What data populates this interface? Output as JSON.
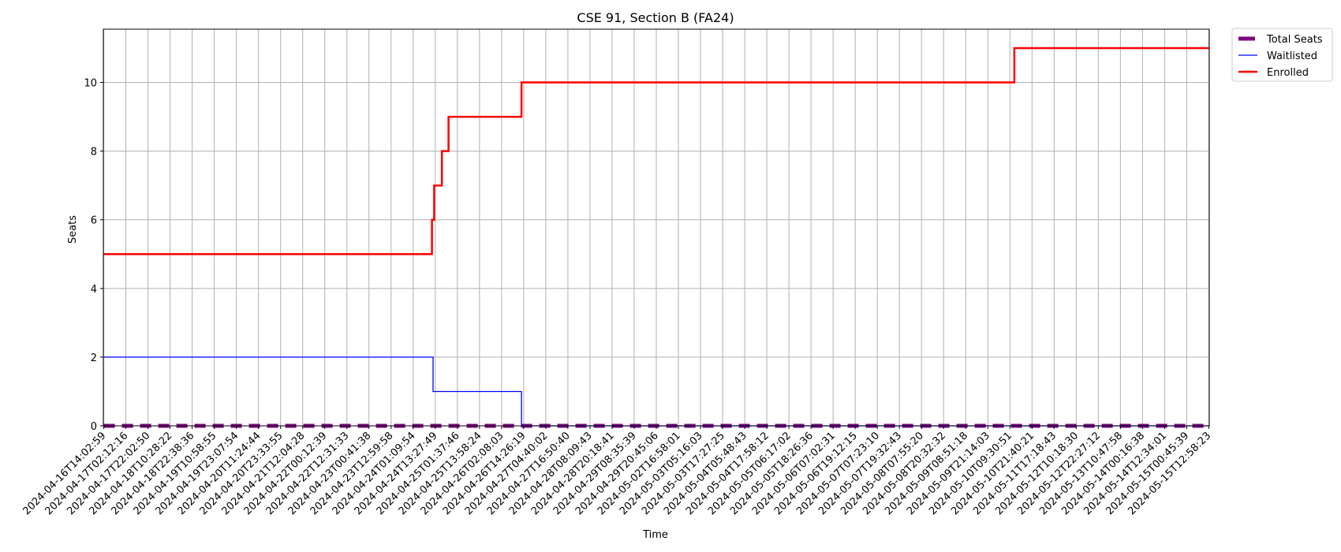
{
  "chart_data": {
    "type": "line",
    "title": "CSE 91, Section B (FA24)",
    "xlabel": "Time",
    "ylabel": "Seats",
    "ylim": [
      0,
      11.55
    ],
    "yticks": [
      0,
      2,
      4,
      6,
      8,
      10
    ],
    "grid": true,
    "legend_position": "outside-top-right",
    "x_ticks": [
      "2024-04-16T14:02:59",
      "2024-04-17T02:12:16",
      "2024-04-17T22:02:50",
      "2024-04-18T10:28:22",
      "2024-04-18T22:38:36",
      "2024-04-19T10:58:55",
      "2024-04-19T23:07:54",
      "2024-04-20T11:24:44",
      "2024-04-20T23:33:55",
      "2024-04-21T12:04:28",
      "2024-04-22T00:12:39",
      "2024-04-22T12:31:33",
      "2024-04-23T00:41:38",
      "2024-04-23T12:59:58",
      "2024-04-24T01:09:54",
      "2024-04-24T13:27:49",
      "2024-04-25T01:37:46",
      "2024-04-25T13:58:24",
      "2024-04-26T02:08:03",
      "2024-04-26T14:26:19",
      "2024-04-27T04:40:02",
      "2024-04-27T16:50:40",
      "2024-04-28T08:09:43",
      "2024-04-28T20:18:41",
      "2024-04-29T08:35:39",
      "2024-04-29T20:45:06",
      "2024-05-02T16:58:01",
      "2024-05-03T05:16:03",
      "2024-05-03T17:27:25",
      "2024-05-04T05:48:43",
      "2024-05-04T17:58:12",
      "2024-05-05T06:17:02",
      "2024-05-05T18:26:36",
      "2024-05-06T07:02:31",
      "2024-05-06T19:12:15",
      "2024-05-07T07:23:10",
      "2024-05-07T19:32:43",
      "2024-05-08T07:55:20",
      "2024-05-08T20:32:32",
      "2024-05-09T08:51:18",
      "2024-05-09T21:14:03",
      "2024-05-10T09:30:51",
      "2024-05-10T21:40:21",
      "2024-05-11T17:18:43",
      "2024-05-12T10:18:30",
      "2024-05-12T22:27:12",
      "2024-05-13T10:47:58",
      "2024-05-14T00:16:38",
      "2024-05-14T12:34:01",
      "2024-05-15T00:45:39",
      "2024-05-15T12:58:23"
    ],
    "series": [
      {
        "name": "Total Seats",
        "color": "#800080",
        "style": "dashed",
        "steps": [
          {
            "x": 0,
            "y": 0
          },
          {
            "x": 50,
            "y": 0
          }
        ]
      },
      {
        "name": "Waitlisted",
        "color": "#0000ff",
        "style": "solid",
        "steps": [
          {
            "x": 0,
            "y": 2
          },
          {
            "x": 14.9,
            "y": 2
          },
          {
            "x": 14.9,
            "y": 1
          },
          {
            "x": 18.9,
            "y": 1
          },
          {
            "x": 18.9,
            "y": 0
          },
          {
            "x": 50,
            "y": 0
          }
        ]
      },
      {
        "name": "Enrolled",
        "color": "#ff0000",
        "style": "solid",
        "steps": [
          {
            "x": 0,
            "y": 5
          },
          {
            "x": 14.85,
            "y": 5
          },
          {
            "x": 14.85,
            "y": 6
          },
          {
            "x": 14.95,
            "y": 6
          },
          {
            "x": 14.95,
            "y": 7
          },
          {
            "x": 15.3,
            "y": 7
          },
          {
            "x": 15.3,
            "y": 8
          },
          {
            "x": 15.6,
            "y": 8
          },
          {
            "x": 15.6,
            "y": 9
          },
          {
            "x": 18.9,
            "y": 9
          },
          {
            "x": 18.9,
            "y": 10
          },
          {
            "x": 41.2,
            "y": 10
          },
          {
            "x": 41.2,
            "y": 11
          },
          {
            "x": 50,
            "y": 11
          }
        ]
      }
    ]
  }
}
